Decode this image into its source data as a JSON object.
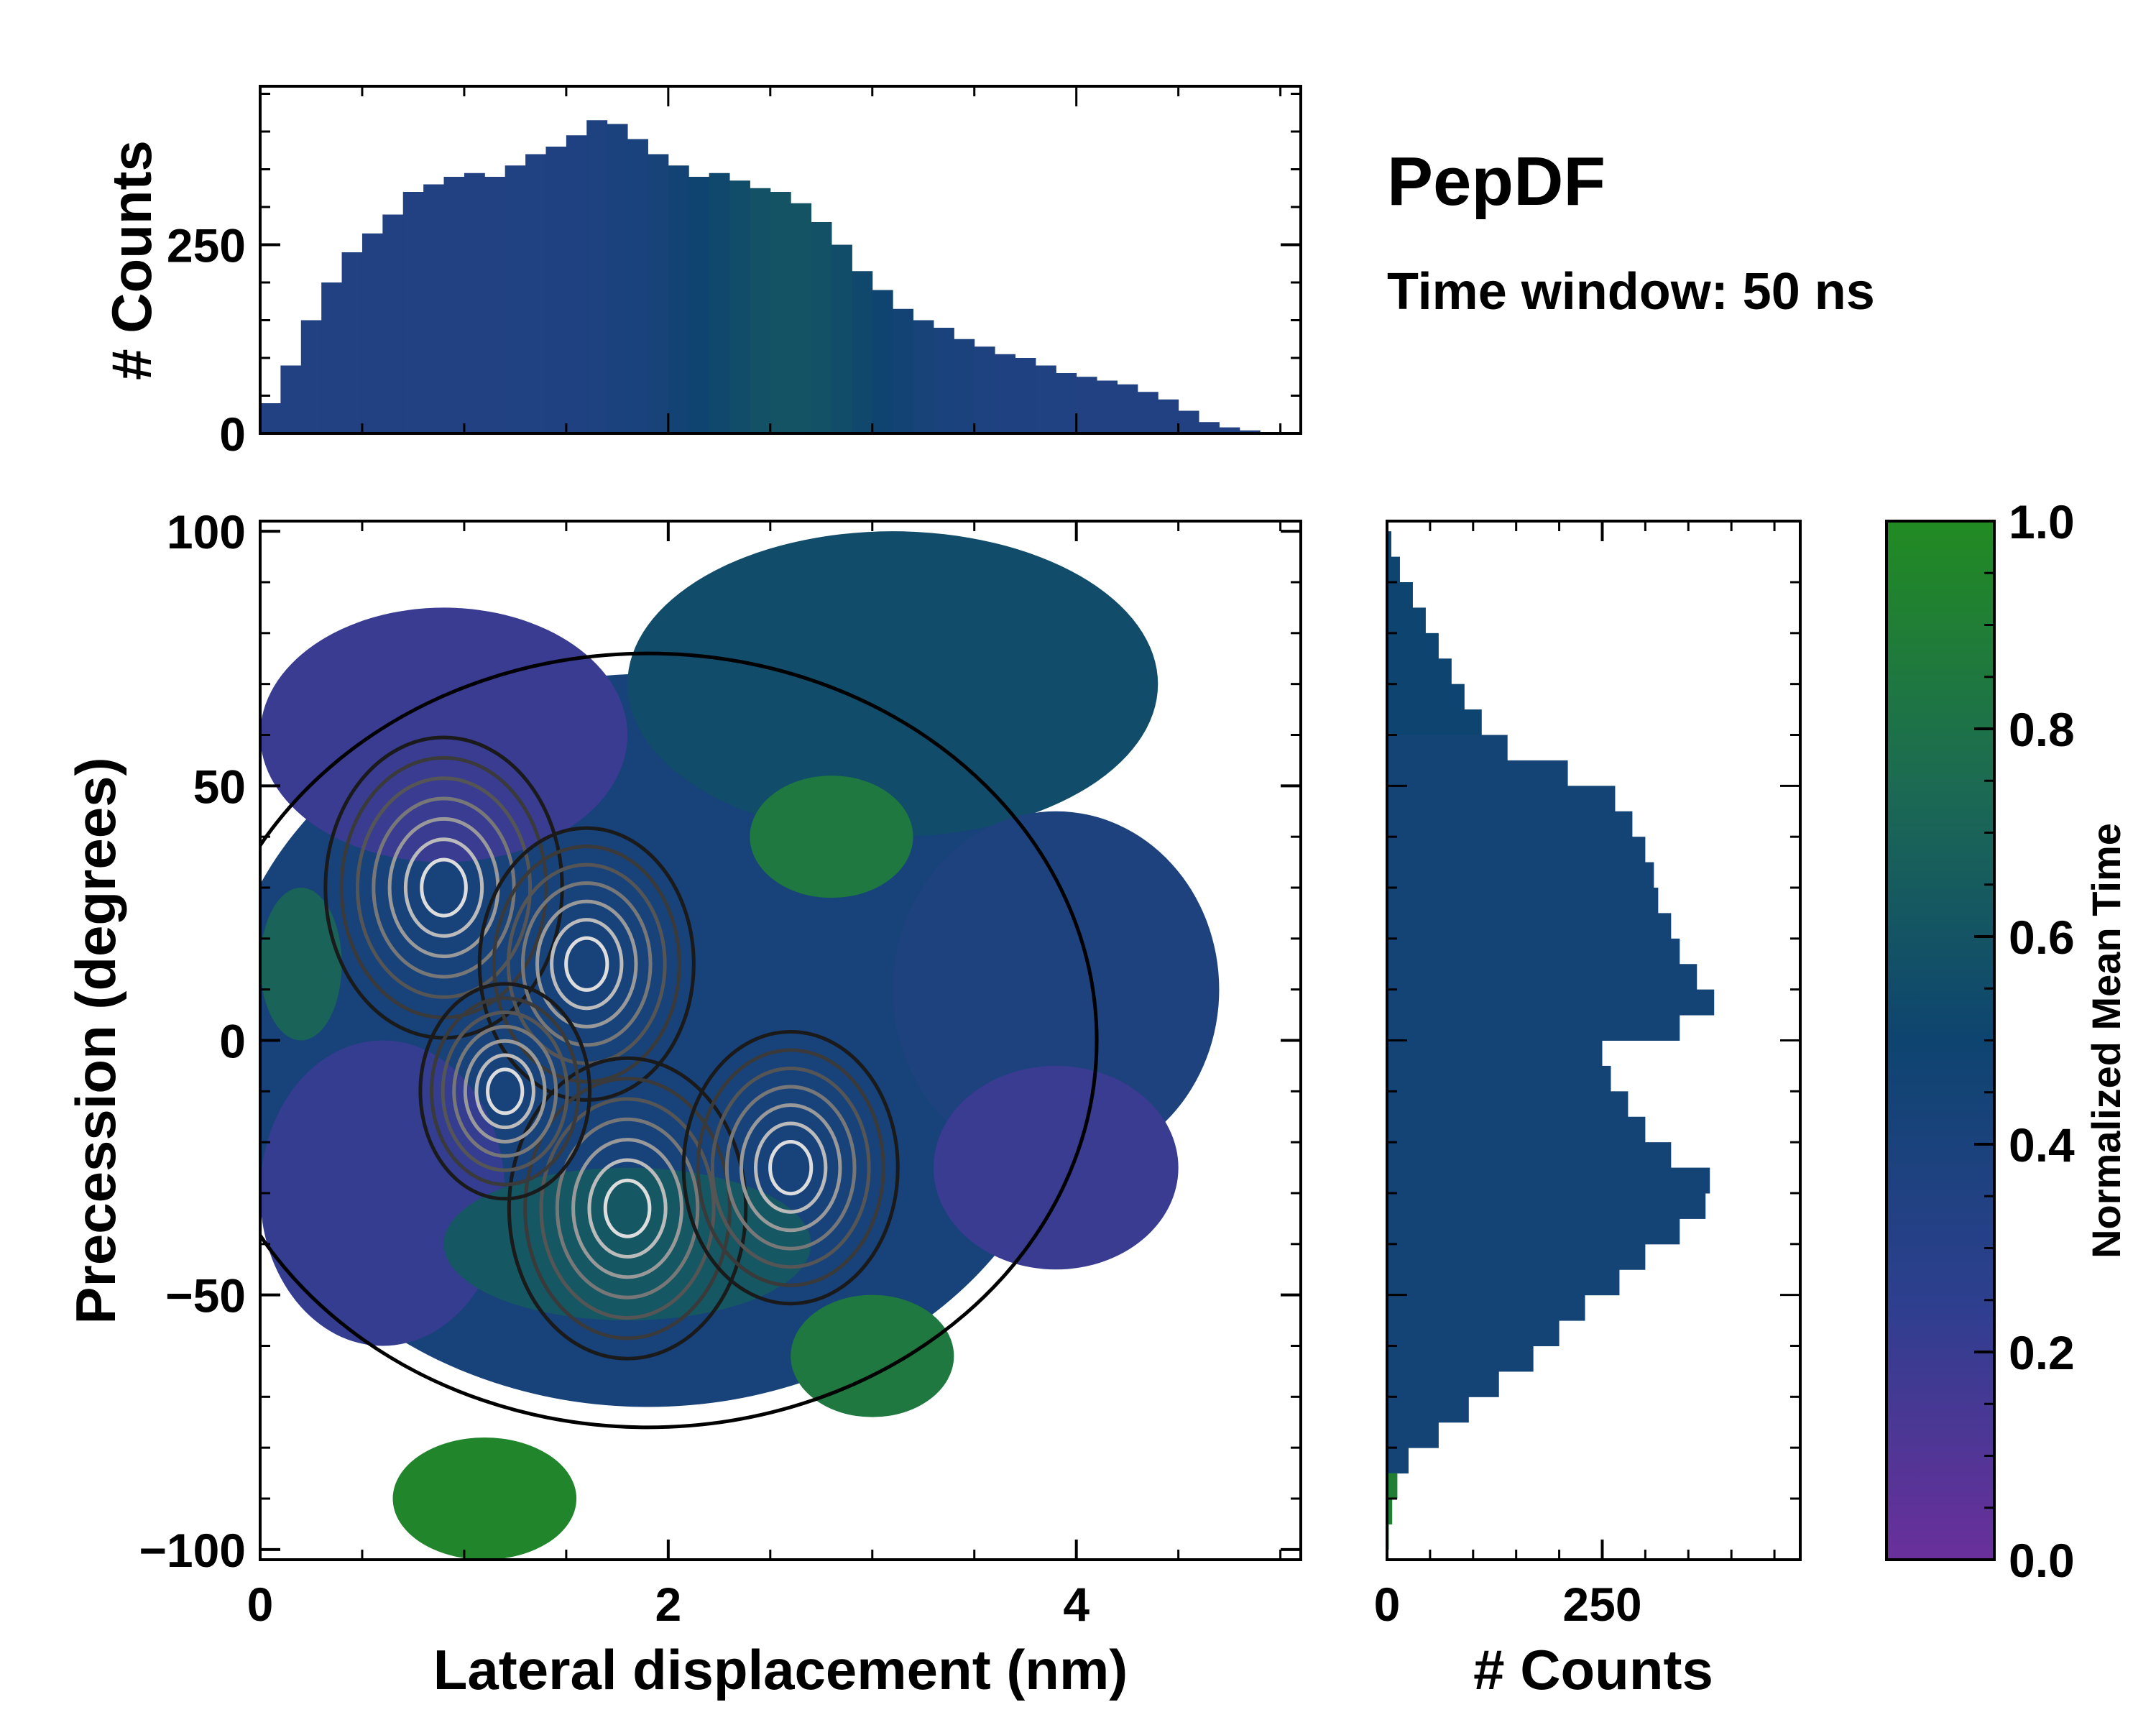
{
  "chart_data": [
    {
      "name": "heatmap",
      "type": "heatmap",
      "xlabel": "Lateral displacement (nm)",
      "ylabel": "Precession (degrees)",
      "xlim": [
        0,
        5.1
      ],
      "ylim": [
        -102,
        102
      ],
      "x_ticks": [
        0,
        2,
        4
      ],
      "x_tick_labels": [
        "0",
        "2",
        "4"
      ],
      "y_ticks": [
        100,
        50,
        0,
        -50,
        -100
      ],
      "y_tick_labels": [
        "100",
        "50",
        "0",
        "−50",
        "−100"
      ],
      "color_metric": "Normalized Mean Time",
      "density_peaks": [
        {
          "x": 0.9,
          "y": 30,
          "value": 1.0
        },
        {
          "x": 1.6,
          "y": 15,
          "value": 0.9
        },
        {
          "x": 1.8,
          "y": -33,
          "value": 1.0
        },
        {
          "x": 2.6,
          "y": -25,
          "value": 0.9
        },
        {
          "x": 1.2,
          "y": -10,
          "value": 0.7
        }
      ],
      "region_colors": [
        {
          "region": "upper-left (x 0.3–1.7, y 40–85)",
          "mean_time": 0.2
        },
        {
          "region": "upper-right (x 2–4.3, y 50–100)",
          "mean_time": 0.55
        },
        {
          "region": "center (x 1–3, y -30–40)",
          "mean_time": 0.5
        },
        {
          "region": "bottom (x 0.6–1.5, y -100 to -75)",
          "mean_time": 0.95
        },
        {
          "region": "lower-right (x 3.5–4.5, y -40 to -10)",
          "mean_time": 0.2
        }
      ]
    },
    {
      "name": "top_histogram",
      "type": "bar",
      "ylabel": "# Counts",
      "y_ticks": [
        0,
        250
      ],
      "y_tick_labels": [
        "0",
        "250"
      ],
      "xlim": [
        0,
        5.1
      ],
      "ylim": [
        0,
        460
      ],
      "x": [
        0.05,
        0.15,
        0.25,
        0.35,
        0.45,
        0.55,
        0.65,
        0.75,
        0.85,
        0.95,
        1.05,
        1.15,
        1.25,
        1.35,
        1.45,
        1.55,
        1.65,
        1.75,
        1.85,
        1.95,
        2.05,
        2.15,
        2.25,
        2.35,
        2.45,
        2.55,
        2.65,
        2.75,
        2.85,
        2.95,
        3.05,
        3.15,
        3.25,
        3.35,
        3.45,
        3.55,
        3.65,
        3.75,
        3.85,
        3.95,
        4.05,
        4.15,
        4.25,
        4.35,
        4.45,
        4.55,
        4.65,
        4.75,
        4.85,
        4.95
      ],
      "values": [
        40,
        90,
        150,
        200,
        240,
        265,
        290,
        320,
        330,
        340,
        345,
        340,
        355,
        370,
        380,
        395,
        415,
        410,
        390,
        370,
        355,
        340,
        345,
        335,
        325,
        320,
        305,
        280,
        250,
        215,
        190,
        165,
        150,
        140,
        125,
        115,
        105,
        100,
        90,
        80,
        75,
        70,
        65,
        55,
        45,
        30,
        15,
        8,
        4,
        1
      ]
    },
    {
      "name": "right_histogram",
      "type": "bar",
      "orientation": "horizontal",
      "xlabel": "# Counts",
      "x_ticks": [
        0,
        250
      ],
      "x_tick_labels": [
        "0",
        "250"
      ],
      "xlim": [
        0,
        480
      ],
      "ylim": [
        -102,
        102
      ],
      "y": [
        97.5,
        92.5,
        87.5,
        82.5,
        77.5,
        72.5,
        67.5,
        62.5,
        57.5,
        52.5,
        47.5,
        42.5,
        37.5,
        32.5,
        27.5,
        22.5,
        17.5,
        12.5,
        7.5,
        2.5,
        -2.5,
        -7.5,
        -12.5,
        -17.5,
        -22.5,
        -27.5,
        -32.5,
        -37.5,
        -42.5,
        -47.5,
        -52.5,
        -57.5,
        -62.5,
        -67.5,
        -72.5,
        -77.5,
        -82.5,
        -87.5,
        -92.5,
        -97.5
      ],
      "values": [
        5,
        15,
        30,
        45,
        60,
        75,
        90,
        110,
        140,
        210,
        265,
        285,
        300,
        310,
        315,
        330,
        340,
        360,
        380,
        340,
        250,
        260,
        280,
        300,
        330,
        375,
        370,
        340,
        300,
        270,
        230,
        200,
        170,
        130,
        95,
        60,
        25,
        12,
        6,
        2
      ]
    }
  ],
  "title": "PepDF",
  "subtitle": "Time window: 50 ns",
  "colorbar": {
    "label": "Normalized Mean Time",
    "ticks": [
      0.0,
      0.2,
      0.4,
      0.6,
      0.8,
      1.0
    ],
    "tick_labels": [
      "0.0",
      "0.2",
      "0.4",
      "0.6",
      "0.8",
      "1.0"
    ],
    "stops": [
      "#6a2f9b",
      "#2d3f8e",
      "#0e4470",
      "#1c6b52",
      "#228b22"
    ]
  },
  "colors": {
    "purple": "#6a2f9b",
    "blue": "#2d3f8e",
    "navy": "#0e4470",
    "teal": "#1c6b52",
    "green": "#228b22"
  }
}
